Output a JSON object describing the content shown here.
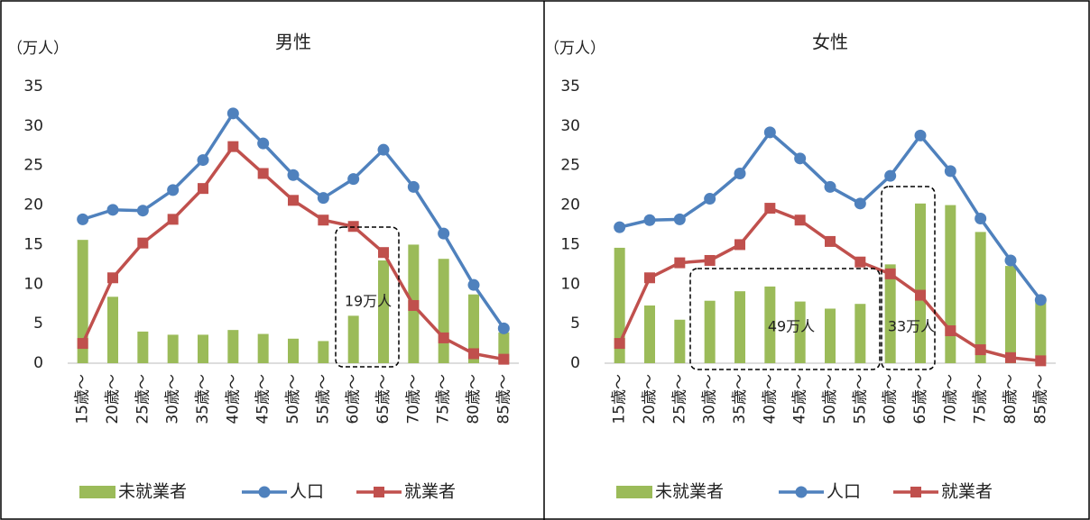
{
  "chart_data": [
    {
      "type": "combo",
      "title": "男性",
      "unit": "（万人）",
      "categories": [
        "15歳～",
        "20歳～",
        "25歳～",
        "30歳～",
        "35歳～",
        "40歳～",
        "45歳～",
        "50歳～",
        "55歳～",
        "60歳～",
        "65歳～",
        "70歳～",
        "75歳～",
        "80歳～",
        "85歳～"
      ],
      "series": [
        {
          "name": "未就業者",
          "type": "bar",
          "color": "#9bbb59",
          "values": [
            15.6,
            8.4,
            4.0,
            3.6,
            3.6,
            4.2,
            3.7,
            3.1,
            2.8,
            6.0,
            13.0,
            15.0,
            13.2,
            8.7,
            3.9
          ]
        },
        {
          "name": "人口",
          "type": "line",
          "marker": "circle",
          "color": "#4f81bd",
          "values": [
            18.2,
            19.4,
            19.3,
            21.9,
            25.7,
            31.6,
            27.8,
            23.8,
            20.9,
            23.3,
            27.0,
            22.3,
            16.4,
            9.9,
            4.4
          ]
        },
        {
          "name": "就業者",
          "type": "line",
          "marker": "square",
          "color": "#c0504d",
          "values": [
            2.5,
            10.8,
            15.2,
            18.2,
            22.1,
            27.4,
            24.0,
            20.6,
            18.1,
            17.3,
            14.0,
            7.3,
            3.2,
            1.2,
            0.5
          ]
        }
      ],
      "ylim": [
        0,
        35
      ],
      "yticks": [
        0,
        5,
        10,
        15,
        20,
        25,
        30,
        35
      ],
      "annotations": [
        "19万人"
      ]
    },
    {
      "type": "combo",
      "title": "女性",
      "unit": "（万人）",
      "categories": [
        "15歳～",
        "20歳～",
        "25歳～",
        "30歳～",
        "35歳～",
        "40歳～",
        "45歳～",
        "50歳～",
        "55歳～",
        "60歳～",
        "65歳～",
        "70歳～",
        "75歳～",
        "80歳～",
        "85歳～"
      ],
      "series": [
        {
          "name": "未就業者",
          "type": "bar",
          "color": "#9bbb59",
          "values": [
            14.6,
            7.3,
            5.5,
            7.9,
            9.1,
            9.7,
            7.8,
            6.9,
            7.5,
            12.5,
            20.2,
            20.0,
            16.6,
            12.3,
            7.7
          ]
        },
        {
          "name": "人口",
          "type": "line",
          "marker": "circle",
          "color": "#4f81bd",
          "values": [
            17.2,
            18.1,
            18.2,
            20.8,
            24.0,
            29.2,
            25.9,
            22.3,
            20.2,
            23.7,
            28.8,
            24.3,
            18.3,
            13.0,
            8.0
          ]
        },
        {
          "name": "就業者",
          "type": "line",
          "marker": "square",
          "color": "#c0504d",
          "values": [
            2.5,
            10.8,
            12.7,
            13.0,
            15.0,
            19.6,
            18.1,
            15.4,
            12.8,
            11.3,
            8.6,
            4.1,
            1.7,
            0.7,
            0.3
          ]
        }
      ],
      "ylim": [
        0,
        35
      ],
      "yticks": [
        0,
        5,
        10,
        15,
        20,
        25,
        30,
        35
      ],
      "annotations": [
        "49万人",
        "33万人"
      ]
    }
  ]
}
